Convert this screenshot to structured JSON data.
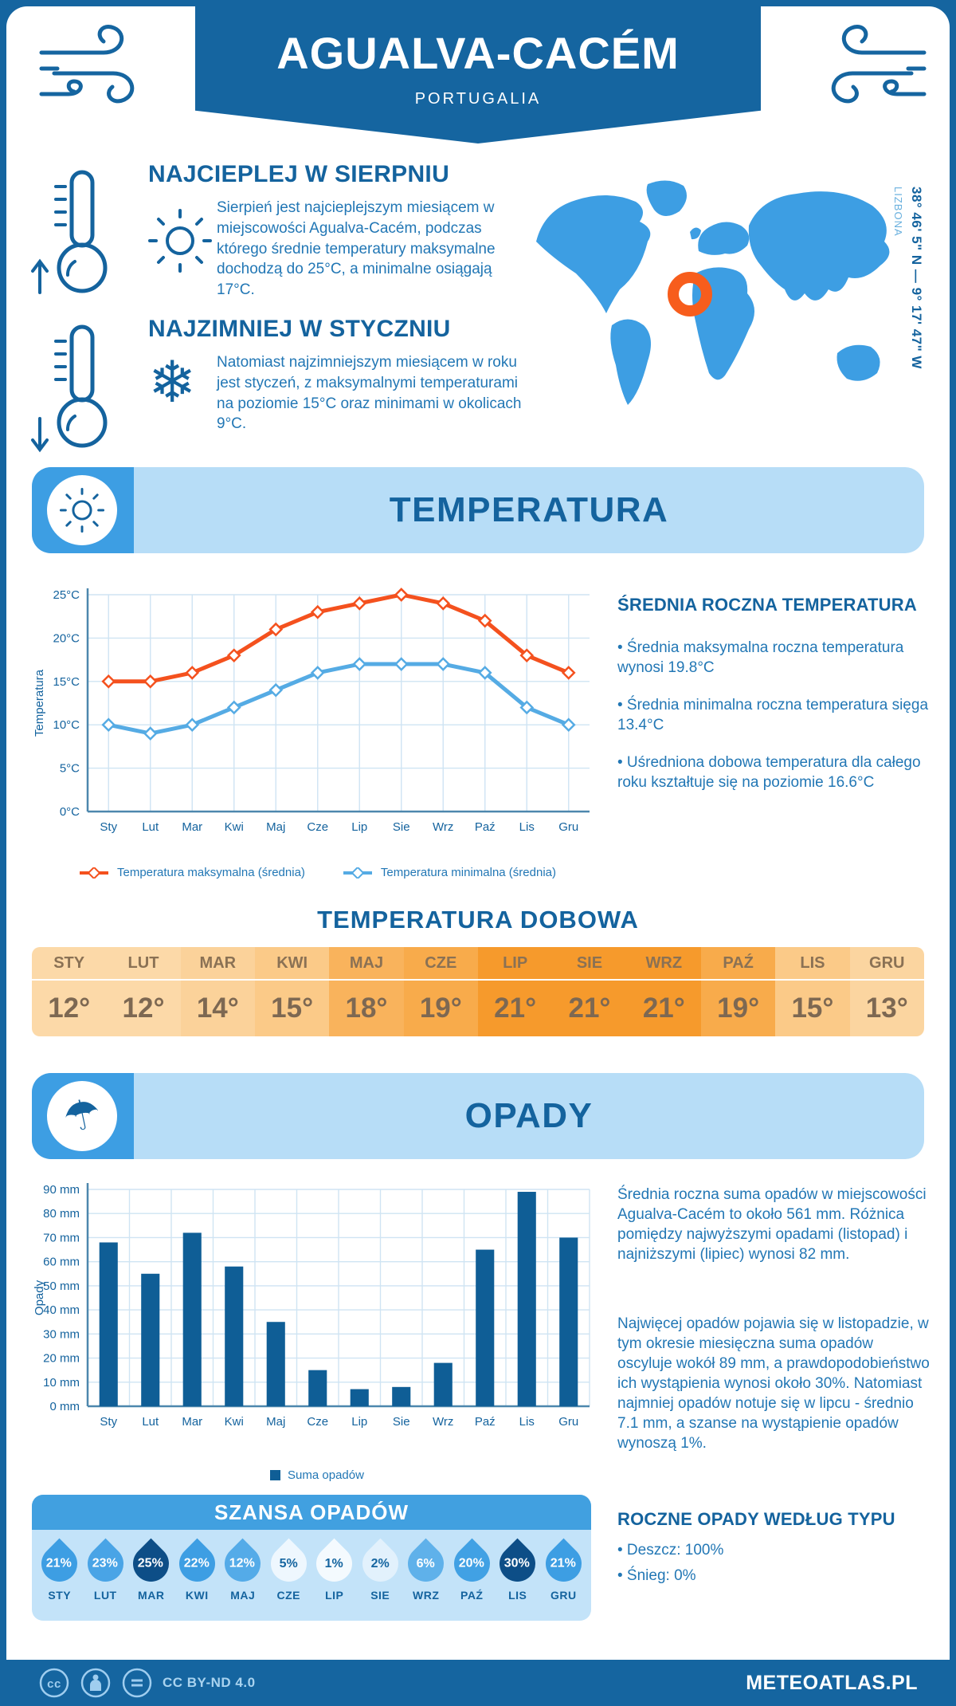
{
  "header": {
    "title": "AGUALVA-CACÉM",
    "subtitle": "PORTUGALIA"
  },
  "intro": {
    "warm": {
      "heading": "NAJCIEPLEJ W SIERPNIU",
      "text": "Sierpień jest najcieplejszym miesiącem w miejscowości Agualva-Cacém, podczas którego średnie temperatury maksymalne dochodzą do 25°C, a minimalne osiągają 17°C."
    },
    "cold": {
      "heading": "NAJZIMNIEJ W STYCZNIU",
      "text": "Natomiast najzimniejszym miesiącem w roku jest styczeń, z maksymalnymi temperaturami na poziomie 15°C oraz minimami w okolicach 9°C."
    },
    "map": {
      "city_label": "LIZBONA",
      "coordinates": "38° 46' 5\" N — 9° 17' 47\" W"
    }
  },
  "icons": {
    "snowflake": "❄",
    "umbrella": "☂"
  },
  "chart_data": [
    {
      "type": "line",
      "categories": [
        "Sty",
        "Lut",
        "Mar",
        "Kwi",
        "Maj",
        "Cze",
        "Lip",
        "Sie",
        "Wrz",
        "Paź",
        "Lis",
        "Gru"
      ],
      "series": [
        {
          "name": "Temperatura maksymalna (średnia)",
          "color": "#f4511e",
          "values": [
            15,
            15,
            16,
            18,
            21,
            23,
            24,
            25,
            24,
            22,
            18,
            16
          ]
        },
        {
          "name": "Temperatura minimalna (średnia)",
          "color": "#55abe4",
          "values": [
            10,
            9,
            10,
            12,
            14,
            16,
            17,
            17,
            17,
            16,
            12,
            10
          ]
        }
      ],
      "ylabel": "Temperatura",
      "ylim": [
        0,
        25
      ],
      "ystep": 5,
      "ytick_suffix": "°C",
      "grid": true,
      "legend_position": "bottom"
    },
    {
      "type": "bar",
      "categories": [
        "Sty",
        "Lut",
        "Mar",
        "Kwi",
        "Maj",
        "Cze",
        "Lip",
        "Sie",
        "Wrz",
        "Paź",
        "Lis",
        "Gru"
      ],
      "values": [
        68,
        55,
        72,
        58,
        35,
        15,
        7.1,
        8,
        18,
        65,
        89,
        70
      ],
      "color": "#0f5e96",
      "ylabel": "Opady",
      "ylim": [
        0,
        90
      ],
      "ystep": 10,
      "ytick_suffix": " mm",
      "grid": true,
      "legend": "Suma opadów",
      "legend_position": "bottom"
    }
  ],
  "temperature": {
    "banner_title": "TEMPERATURA",
    "summary_heading": "ŚREDNIA ROCZNA TEMPERATURA",
    "bullets": [
      "• Średnia maksymalna roczna temperatura wynosi 19.8°C",
      "• Średnia minimalna roczna temperatura sięga 13.4°C",
      "• Uśredniona dobowa temperatura dla całego roku kształtuje się na poziomie 16.6°C"
    ],
    "daily": {
      "title": "TEMPERATURA DOBOWA",
      "months": [
        "STY",
        "LUT",
        "MAR",
        "KWI",
        "MAJ",
        "CZE",
        "LIP",
        "SIE",
        "WRZ",
        "PAŹ",
        "LIS",
        "GRU"
      ],
      "values": [
        "12°",
        "12°",
        "14°",
        "15°",
        "18°",
        "19°",
        "21°",
        "21°",
        "21°",
        "19°",
        "15°",
        "13°"
      ],
      "colors": [
        "#fcd9a8",
        "#fcd9a8",
        "#fbd29a",
        "#fbca88",
        "#f9b35c",
        "#f8ab4b",
        "#f69a2c",
        "#f69a2c",
        "#f69a2c",
        "#f8ab4b",
        "#fbca88",
        "#fbd5a0"
      ]
    }
  },
  "precip": {
    "banner_title": "OPADY",
    "text1": "Średnia roczna suma opadów w miejscowości Agualva-Cacém to około 561 mm. Różnica pomiędzy najwyższymi opadami (listopad) i najniższymi (lipiec) wynosi 82 mm.",
    "text2": "Najwięcej opadów pojawia się w listopadzie, w tym okresie miesięczna suma opadów oscyluje wokół 89 mm, a prawdopodobieństwo ich wystąpienia wynosi około 30%. Natomiast najmniej opadów notuje się w lipcu - średnio 7.1 mm, a szanse na wystąpienie opadów wynoszą 1%.",
    "chance_title": "SZANSA OPADÓW",
    "drops": {
      "months": [
        "STY",
        "LUT",
        "MAR",
        "KWI",
        "MAJ",
        "CZE",
        "LIP",
        "SIE",
        "WRZ",
        "PAŹ",
        "LIS",
        "GRU"
      ],
      "values": [
        "21%",
        "23%",
        "25%",
        "22%",
        "12%",
        "5%",
        "1%",
        "2%",
        "6%",
        "20%",
        "30%",
        "21%"
      ],
      "bg": [
        "#3d9ee3",
        "#49a4e6",
        "#0d4e87",
        "#3d9ee3",
        "#54abe8",
        "#eef7fe",
        "#f4fafe",
        "#e2f1fc",
        "#5fb1ea",
        "#41a1e4",
        "#0d4e87",
        "#3d9ee3"
      ],
      "fg": [
        "#ffffff",
        "#ffffff",
        "#ffffff",
        "#ffffff",
        "#ffffff",
        "#1565a0",
        "#1565a0",
        "#1565a0",
        "#ffffff",
        "#ffffff",
        "#ffffff",
        "#ffffff"
      ]
    },
    "type_heading": "ROCZNE OPADY WEDŁUG TYPU",
    "type_bullets": [
      "• Deszcz: 100%",
      "• Śnieg: 0%"
    ]
  },
  "footer": {
    "license": "CC BY-ND 4.0",
    "brand": "METEOATLAS.PL"
  }
}
